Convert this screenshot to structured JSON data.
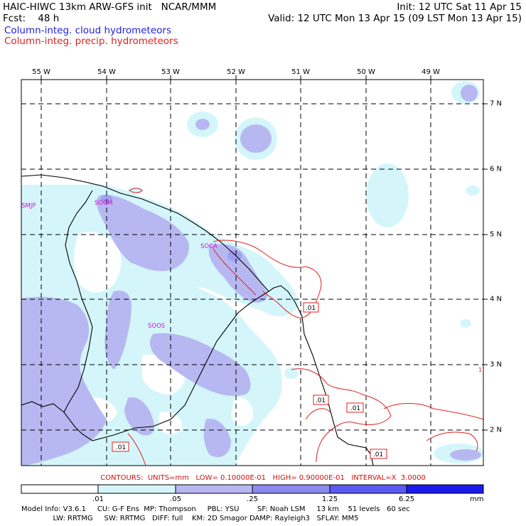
{
  "header": {
    "line1_left": "HAIC-HIWC 13km ARW-GFS init   NCAR/MMM",
    "line1_right": "Init: 12 UTC Sat 11 Apr 15",
    "line2_left": "Fcst:    48 h",
    "line2_right": "Valid: 12 UTC Mon 13 Apr 15 (09 LST Mon 13 Apr 15)",
    "line3": "Column-integ. cloud hydrometeors",
    "line4": "Column-integ. precip. hydrometeors"
  },
  "colors": {
    "cloud_text": "#2020e0",
    "precip_text": "#e02020",
    "level1": "#d4f6fb",
    "level2": "#b7b8f1",
    "level3": "#8a8aef",
    "level4": "#5a5af2",
    "level5": "#1a1aee",
    "coast": "#000000",
    "stations": "#d010d0",
    "contour": "#e02020"
  },
  "map": {
    "lon_labels": [
      "55 W",
      "54 W",
      "53 W",
      "52 W",
      "51 W",
      "50 W",
      "49 W"
    ],
    "lat_labels": [
      "7 N",
      "6 N",
      "5 N",
      "4 N",
      "3 N",
      "2 N"
    ],
    "stations": [
      "SMJP",
      "SOCM",
      "SOCA",
      "SOOS"
    ],
    "contour_labels": [
      ".01",
      ".01",
      ".01",
      ".01",
      ".01"
    ],
    "edge_mark": "1"
  },
  "contour_info": "CONTOURS:  UNITS=mm   LOW= 0.10000E-01   HIGH= 0.90000E-01   INTERVAL=X  3.0000",
  "colorbar": {
    "ticks": [
      ".01",
      ".05",
      ".25",
      "1.25",
      "6.25"
    ],
    "unit": "mm"
  },
  "model_info": {
    "line1": "Model Info: V3.6.1     CU: G-F Ens  MP: Thompson     PBL: YSU        SF: Noah LSM     13 km    51 levels   60 sec",
    "line2": "              LW: RRTMG     SW: RRTMG   DIFF: full    KM: 2D Smagor DAMP: Rayleigh3   SFLAY: MM5"
  }
}
